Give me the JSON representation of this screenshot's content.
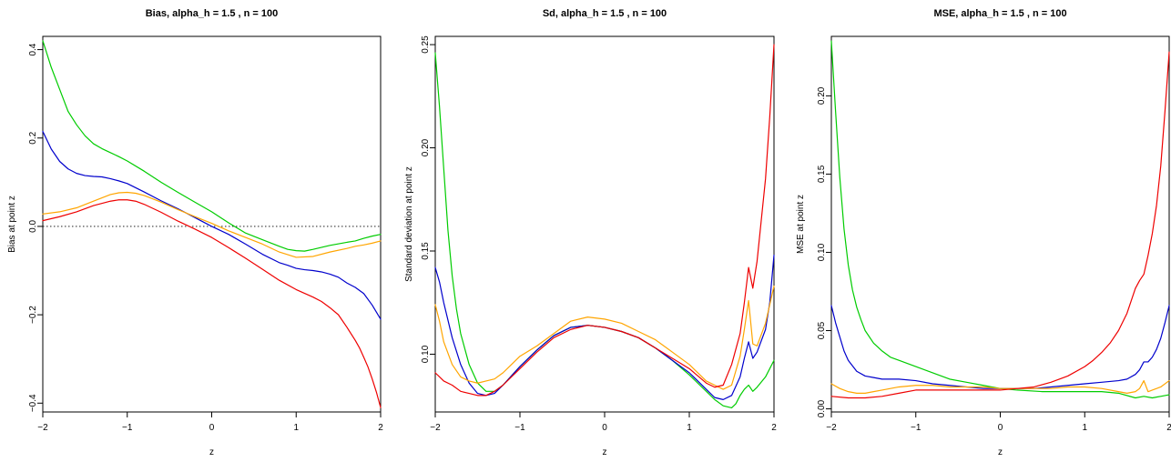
{
  "chart_data": [
    {
      "type": "line",
      "title": "Bias, alpha_h = 1.5 , n = 100",
      "xlabel": "z",
      "ylabel": "Bias at point z",
      "xlim": [
        -2,
        2
      ],
      "ylim": [
        -0.42,
        0.43
      ],
      "xticks": [
        -2,
        -1,
        0,
        1,
        2
      ],
      "xtick_labels": [
        "−2",
        "−1",
        "0",
        "1",
        "2"
      ],
      "yticks": [
        -0.4,
        -0.2,
        0.0,
        0.2,
        0.4
      ],
      "ytick_labels": [
        "−0.4",
        "−0.2",
        "0.0",
        "0.2",
        "0.4"
      ],
      "grid": false,
      "reference_line": {
        "y": 0,
        "style": "dotted",
        "color": "#000000"
      },
      "series": [
        {
          "color": "#00CC00",
          "x": [
            -2,
            -1.9,
            -1.8,
            -1.7,
            -1.6,
            -1.5,
            -1.4,
            -1.3,
            -1.2,
            -1.1,
            -1.0,
            -0.8,
            -0.6,
            -0.4,
            -0.2,
            0.0,
            0.2,
            0.4,
            0.6,
            0.8,
            0.9,
            1.0,
            1.1,
            1.2,
            1.4,
            1.6,
            1.7,
            1.8,
            1.9,
            2.0
          ],
          "values": [
            0.42,
            0.36,
            0.31,
            0.26,
            0.23,
            0.205,
            0.187,
            0.176,
            0.167,
            0.158,
            0.148,
            0.125,
            0.1,
            0.077,
            0.055,
            0.033,
            0.008,
            -0.015,
            -0.03,
            -0.045,
            -0.052,
            -0.055,
            -0.056,
            -0.052,
            -0.043,
            -0.036,
            -0.033,
            -0.027,
            -0.022,
            -0.018
          ]
        },
        {
          "color": "#0000CC",
          "x": [
            -2,
            -1.9,
            -1.8,
            -1.7,
            -1.6,
            -1.5,
            -1.4,
            -1.3,
            -1.2,
            -1.1,
            -1.0,
            -0.8,
            -0.6,
            -0.4,
            -0.2,
            0.0,
            0.2,
            0.4,
            0.6,
            0.8,
            0.9,
            1.0,
            1.1,
            1.2,
            1.3,
            1.4,
            1.5,
            1.6,
            1.7,
            1.8,
            1.9,
            2.0
          ],
          "values": [
            0.215,
            0.175,
            0.147,
            0.13,
            0.12,
            0.115,
            0.113,
            0.112,
            0.108,
            0.103,
            0.097,
            0.078,
            0.058,
            0.04,
            0.02,
            0.0,
            -0.018,
            -0.04,
            -0.063,
            -0.082,
            -0.088,
            -0.095,
            -0.098,
            -0.1,
            -0.103,
            -0.108,
            -0.115,
            -0.128,
            -0.138,
            -0.152,
            -0.178,
            -0.21
          ]
        },
        {
          "color": "#FFA500",
          "x": [
            -2,
            -1.8,
            -1.6,
            -1.4,
            -1.2,
            -1.1,
            -1.0,
            -0.9,
            -0.8,
            -0.6,
            -0.4,
            -0.2,
            0.0,
            0.2,
            0.4,
            0.6,
            0.8,
            1.0,
            1.2,
            1.4,
            1.6,
            1.7,
            1.8,
            1.9,
            2.0
          ],
          "values": [
            0.028,
            0.033,
            0.042,
            0.057,
            0.072,
            0.076,
            0.077,
            0.075,
            0.07,
            0.055,
            0.038,
            0.022,
            0.007,
            -0.01,
            -0.025,
            -0.04,
            -0.058,
            -0.07,
            -0.068,
            -0.058,
            -0.05,
            -0.045,
            -0.042,
            -0.038,
            -0.033
          ]
        },
        {
          "color": "#EE0000",
          "x": [
            -2,
            -1.8,
            -1.6,
            -1.4,
            -1.2,
            -1.1,
            -1.0,
            -0.9,
            -0.8,
            -0.6,
            -0.4,
            -0.2,
            0.0,
            0.2,
            0.4,
            0.6,
            0.8,
            1.0,
            1.2,
            1.3,
            1.4,
            1.5,
            1.6,
            1.7,
            1.75,
            1.8,
            1.85,
            1.9,
            1.95,
            2.0
          ],
          "values": [
            0.013,
            0.022,
            0.033,
            0.047,
            0.057,
            0.06,
            0.06,
            0.057,
            0.05,
            0.032,
            0.012,
            -0.006,
            -0.025,
            -0.048,
            -0.072,
            -0.097,
            -0.122,
            -0.143,
            -0.16,
            -0.17,
            -0.184,
            -0.2,
            -0.228,
            -0.258,
            -0.275,
            -0.296,
            -0.318,
            -0.345,
            -0.375,
            -0.41
          ]
        }
      ]
    },
    {
      "type": "line",
      "title": "Sd, alpha_h = 1.5 , n = 100",
      "xlabel": "z",
      "ylabel": "Standard deviation at point z",
      "xlim": [
        -2,
        2
      ],
      "ylim": [
        0.072,
        0.254
      ],
      "xticks": [
        -2,
        -1,
        0,
        1,
        2
      ],
      "xtick_labels": [
        "−2",
        "−1",
        "0",
        "1",
        "2"
      ],
      "yticks": [
        0.1,
        0.15,
        0.2,
        0.25
      ],
      "ytick_labels": [
        "0.10",
        "0.15",
        "0.20",
        "0.25"
      ],
      "grid": false,
      "series": [
        {
          "color": "#00CC00",
          "x": [
            -2,
            -1.95,
            -1.9,
            -1.85,
            -1.8,
            -1.75,
            -1.7,
            -1.6,
            -1.5,
            -1.4,
            -1.3,
            -1.2,
            -1.0,
            -0.8,
            -0.6,
            -0.4,
            -0.2,
            0.0,
            0.2,
            0.4,
            0.6,
            0.8,
            1.0,
            1.2,
            1.3,
            1.4,
            1.5,
            1.55,
            1.6,
            1.65,
            1.7,
            1.75,
            1.8,
            1.9,
            2.0
          ],
          "values": [
            0.246,
            0.22,
            0.19,
            0.16,
            0.138,
            0.122,
            0.11,
            0.095,
            0.086,
            0.082,
            0.082,
            0.085,
            0.094,
            0.102,
            0.109,
            0.113,
            0.114,
            0.113,
            0.111,
            0.108,
            0.103,
            0.097,
            0.09,
            0.082,
            0.078,
            0.075,
            0.074,
            0.076,
            0.08,
            0.083,
            0.085,
            0.082,
            0.084,
            0.089,
            0.097
          ]
        },
        {
          "color": "#0000CC",
          "x": [
            -2,
            -1.95,
            -1.9,
            -1.8,
            -1.7,
            -1.6,
            -1.5,
            -1.4,
            -1.3,
            -1.2,
            -1.0,
            -0.8,
            -0.6,
            -0.4,
            -0.2,
            0.0,
            0.2,
            0.4,
            0.6,
            0.8,
            1.0,
            1.2,
            1.3,
            1.4,
            1.5,
            1.6,
            1.65,
            1.7,
            1.75,
            1.8,
            1.9,
            1.95,
            2.0
          ],
          "values": [
            0.142,
            0.135,
            0.125,
            0.108,
            0.095,
            0.086,
            0.081,
            0.08,
            0.081,
            0.085,
            0.094,
            0.102,
            0.109,
            0.113,
            0.114,
            0.113,
            0.111,
            0.108,
            0.103,
            0.097,
            0.091,
            0.083,
            0.079,
            0.078,
            0.08,
            0.089,
            0.098,
            0.106,
            0.098,
            0.101,
            0.112,
            0.125,
            0.148
          ]
        },
        {
          "color": "#FFA500",
          "x": [
            -2,
            -1.95,
            -1.9,
            -1.8,
            -1.7,
            -1.6,
            -1.5,
            -1.4,
            -1.3,
            -1.2,
            -1.1,
            -1.0,
            -0.8,
            -0.6,
            -0.4,
            -0.2,
            0.0,
            0.2,
            0.4,
            0.6,
            0.8,
            1.0,
            1.2,
            1.3,
            1.4,
            1.5,
            1.6,
            1.65,
            1.7,
            1.75,
            1.8,
            1.9,
            2.0
          ],
          "values": [
            0.124,
            0.116,
            0.106,
            0.095,
            0.089,
            0.087,
            0.086,
            0.087,
            0.088,
            0.091,
            0.095,
            0.099,
            0.104,
            0.11,
            0.116,
            0.118,
            0.117,
            0.115,
            0.111,
            0.107,
            0.101,
            0.095,
            0.087,
            0.085,
            0.083,
            0.085,
            0.099,
            0.112,
            0.126,
            0.105,
            0.104,
            0.115,
            0.133
          ]
        },
        {
          "color": "#EE0000",
          "x": [
            -2,
            -1.9,
            -1.8,
            -1.7,
            -1.6,
            -1.5,
            -1.4,
            -1.3,
            -1.2,
            -1.0,
            -0.8,
            -0.6,
            -0.4,
            -0.2,
            0.0,
            0.2,
            0.4,
            0.6,
            0.8,
            1.0,
            1.2,
            1.3,
            1.4,
            1.5,
            1.6,
            1.65,
            1.7,
            1.75,
            1.8,
            1.85,
            1.9,
            1.95,
            2.0
          ],
          "values": [
            0.091,
            0.087,
            0.085,
            0.082,
            0.081,
            0.08,
            0.08,
            0.082,
            0.085,
            0.093,
            0.101,
            0.108,
            0.112,
            0.114,
            0.113,
            0.111,
            0.108,
            0.103,
            0.098,
            0.093,
            0.086,
            0.084,
            0.085,
            0.095,
            0.11,
            0.125,
            0.142,
            0.132,
            0.145,
            0.165,
            0.185,
            0.215,
            0.25
          ]
        }
      ]
    },
    {
      "type": "line",
      "title": "MSE, alpha_h = 1.5 , n = 100",
      "xlabel": "z",
      "ylabel": "MSE at point z",
      "xlim": [
        -2,
        2
      ],
      "ylim": [
        -0.002,
        0.238
      ],
      "xticks": [
        -2,
        -1,
        0,
        1,
        2
      ],
      "xtick_labels": [
        "−2",
        "−1",
        "0",
        "1",
        "2"
      ],
      "yticks": [
        0.0,
        0.05,
        0.1,
        0.15,
        0.2
      ],
      "ytick_labels": [
        "0.00",
        "0.05",
        "0.10",
        "0.15",
        "0.20"
      ],
      "grid": false,
      "series": [
        {
          "color": "#00CC00",
          "x": [
            -2,
            -1.95,
            -1.9,
            -1.85,
            -1.8,
            -1.75,
            -1.7,
            -1.65,
            -1.6,
            -1.5,
            -1.4,
            -1.3,
            -1.2,
            -1.0,
            -0.8,
            -0.6,
            -0.4,
            -0.2,
            0.0,
            0.2,
            0.5,
            0.8,
            1.0,
            1.2,
            1.4,
            1.6,
            1.7,
            1.8,
            1.9,
            2.0
          ],
          "values": [
            0.235,
            0.19,
            0.148,
            0.115,
            0.092,
            0.076,
            0.065,
            0.057,
            0.05,
            0.042,
            0.037,
            0.033,
            0.031,
            0.027,
            0.023,
            0.019,
            0.017,
            0.015,
            0.013,
            0.012,
            0.011,
            0.011,
            0.011,
            0.011,
            0.01,
            0.007,
            0.008,
            0.007,
            0.008,
            0.009
          ]
        },
        {
          "color": "#0000CC",
          "x": [
            -2,
            -1.95,
            -1.9,
            -1.85,
            -1.8,
            -1.7,
            -1.6,
            -1.5,
            -1.4,
            -1.3,
            -1.2,
            -1.0,
            -0.8,
            -0.6,
            -0.4,
            -0.2,
            0.0,
            0.2,
            0.4,
            0.6,
            0.8,
            1.0,
            1.2,
            1.4,
            1.5,
            1.6,
            1.65,
            1.7,
            1.75,
            1.8,
            1.85,
            1.9,
            1.95,
            2.0
          ],
          "values": [
            0.066,
            0.055,
            0.046,
            0.037,
            0.031,
            0.024,
            0.021,
            0.02,
            0.019,
            0.019,
            0.019,
            0.018,
            0.016,
            0.015,
            0.014,
            0.013,
            0.013,
            0.013,
            0.013,
            0.014,
            0.015,
            0.016,
            0.017,
            0.018,
            0.019,
            0.022,
            0.025,
            0.03,
            0.03,
            0.033,
            0.038,
            0.045,
            0.055,
            0.066
          ]
        },
        {
          "color": "#FFA500",
          "x": [
            -2,
            -1.9,
            -1.8,
            -1.7,
            -1.6,
            -1.5,
            -1.4,
            -1.3,
            -1.2,
            -1.0,
            -0.8,
            -0.6,
            -0.4,
            -0.2,
            0.0,
            0.2,
            0.4,
            0.6,
            0.8,
            1.0,
            1.2,
            1.4,
            1.5,
            1.6,
            1.65,
            1.7,
            1.75,
            1.8,
            1.9,
            2.0
          ],
          "values": [
            0.016,
            0.013,
            0.011,
            0.01,
            0.01,
            0.011,
            0.012,
            0.013,
            0.014,
            0.015,
            0.015,
            0.014,
            0.014,
            0.014,
            0.013,
            0.013,
            0.013,
            0.013,
            0.014,
            0.014,
            0.013,
            0.011,
            0.01,
            0.011,
            0.013,
            0.018,
            0.011,
            0.012,
            0.014,
            0.018
          ]
        },
        {
          "color": "#EE0000",
          "x": [
            -2,
            -1.8,
            -1.6,
            -1.4,
            -1.2,
            -1.0,
            -0.8,
            -0.6,
            -0.4,
            -0.2,
            0.0,
            0.2,
            0.4,
            0.6,
            0.8,
            1.0,
            1.1,
            1.2,
            1.3,
            1.4,
            1.5,
            1.6,
            1.65,
            1.7,
            1.75,
            1.8,
            1.85,
            1.9,
            1.95,
            2.0
          ],
          "values": [
            0.008,
            0.007,
            0.007,
            0.008,
            0.01,
            0.012,
            0.012,
            0.012,
            0.012,
            0.012,
            0.012,
            0.013,
            0.014,
            0.017,
            0.021,
            0.027,
            0.031,
            0.036,
            0.042,
            0.05,
            0.061,
            0.077,
            0.082,
            0.086,
            0.098,
            0.112,
            0.13,
            0.155,
            0.19,
            0.228
          ]
        }
      ]
    }
  ]
}
